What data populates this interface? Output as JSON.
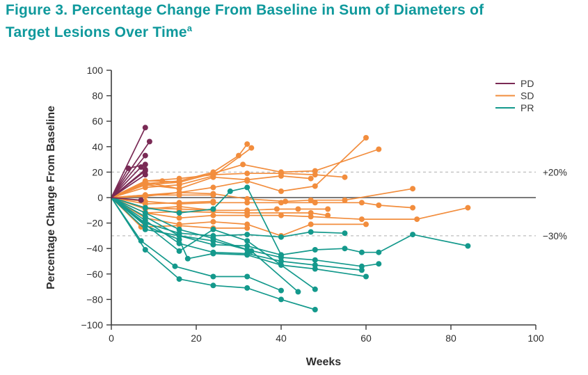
{
  "title": {
    "line1": "Figure 3. Percentage Change From Baseline in Sum of Diameters of",
    "line2": "Target Lesions Over Time",
    "footnote_marker": "a",
    "color": "#0f999c"
  },
  "chart_data": {
    "type": "line",
    "title": "Percentage Change From Baseline in Sum of Diameters of Target Lesions Over Time",
    "xlabel": "Weeks",
    "ylabel": "Percentage Change From Baseline",
    "xlim": [
      0,
      100
    ],
    "ylim": [
      -100,
      100
    ],
    "grid": false,
    "legend_position": "top-right",
    "x_ticks": [
      {
        "v": 0,
        "label": "0"
      },
      {
        "v": 20,
        "label": "20"
      },
      {
        "v": 40,
        "label": "40"
      },
      {
        "v": 60,
        "label": "60"
      },
      {
        "v": 80,
        "label": "80"
      },
      {
        "v": 100,
        "label": "100"
      }
    ],
    "y_ticks": [
      {
        "v": 100,
        "label": "100"
      },
      {
        "v": 80,
        "label": "80"
      },
      {
        "v": 60,
        "label": "60"
      },
      {
        "v": 40,
        "label": "40"
      },
      {
        "v": 20,
        "label": "20"
      },
      {
        "v": 0,
        "label": "0"
      },
      {
        "v": -20,
        "label": "−20"
      },
      {
        "v": -40,
        "label": "−40"
      },
      {
        "v": -60,
        "label": "−60"
      },
      {
        "v": -80,
        "label": "−80"
      },
      {
        "v": -100,
        "label": "−100"
      }
    ],
    "reference_lines": [
      {
        "y": 20,
        "label": "+20%",
        "style": "dashed",
        "color": "#bdbdbd"
      },
      {
        "y": -30,
        "label": "−30%",
        "style": "dashed",
        "color": "#bdbdbd"
      },
      {
        "y": 0,
        "label": "",
        "style": "solid",
        "color": "#7a7a7a"
      }
    ],
    "legend": [
      {
        "name": "PD",
        "color": "#7a2a55"
      },
      {
        "name": "SD",
        "color": "#f28d3d"
      },
      {
        "name": "PR",
        "color": "#14998c"
      }
    ],
    "axis_color": "#3a3a3a",
    "text_color": "#2e2e2e",
    "series": [
      {
        "group": "SD",
        "points": [
          [
            0,
            0
          ],
          [
            8,
            2
          ],
          [
            16,
            4
          ],
          [
            24,
            8
          ],
          [
            32,
            13
          ],
          [
            40,
            5
          ],
          [
            48,
            9
          ],
          [
            60,
            47
          ]
        ]
      },
      {
        "group": "SD",
        "points": [
          [
            0,
            0
          ],
          [
            8,
            10
          ],
          [
            16,
            12
          ],
          [
            24,
            19
          ],
          [
            31,
            26
          ],
          [
            40,
            20
          ],
          [
            48,
            21
          ],
          [
            63,
            38
          ]
        ]
      },
      {
        "group": "SD",
        "points": [
          [
            0,
            0
          ],
          [
            8,
            11
          ],
          [
            16,
            13
          ],
          [
            24,
            20
          ],
          [
            30,
            33
          ],
          [
            32,
            42
          ]
        ]
      },
      {
        "group": "SD",
        "points": [
          [
            0,
            0
          ],
          [
            8,
            8
          ],
          [
            16,
            10
          ],
          [
            24,
            17
          ],
          [
            33,
            39
          ]
        ]
      },
      {
        "group": "SD",
        "points": [
          [
            0,
            0
          ],
          [
            8,
            13
          ],
          [
            16,
            15
          ],
          [
            24,
            18
          ],
          [
            32,
            19
          ],
          [
            40,
            19
          ],
          [
            48,
            18
          ],
          [
            55,
            16
          ]
        ]
      },
      {
        "group": "SD",
        "points": [
          [
            0,
            0
          ],
          [
            8,
            12
          ],
          [
            16,
            7
          ],
          [
            24,
            16
          ],
          [
            32,
            14
          ],
          [
            40,
            17
          ],
          [
            47,
            15
          ]
        ]
      },
      {
        "group": "SD",
        "points": [
          [
            0,
            0
          ],
          [
            8,
            1
          ],
          [
            16,
            4
          ],
          [
            24,
            3
          ],
          [
            32,
            -1
          ],
          [
            41,
            -3
          ],
          [
            47,
            -2
          ],
          [
            55,
            -2
          ],
          [
            71,
            7
          ]
        ]
      },
      {
        "group": "SD",
        "points": [
          [
            0,
            0
          ],
          [
            8,
            -3
          ],
          [
            16,
            -5
          ],
          [
            24,
            -4
          ],
          [
            32,
            -4
          ],
          [
            40,
            -4
          ],
          [
            48,
            -4
          ],
          [
            59,
            -4
          ],
          [
            63,
            -6
          ],
          [
            71,
            -8
          ]
        ]
      },
      {
        "group": "SD",
        "points": [
          [
            0,
            0
          ],
          [
            8,
            -8
          ],
          [
            16,
            -9
          ],
          [
            24,
            -10
          ],
          [
            32,
            -10
          ],
          [
            39,
            -9
          ],
          [
            44,
            -9
          ],
          [
            51,
            -9
          ]
        ]
      },
      {
        "group": "SD",
        "points": [
          [
            0,
            0
          ],
          [
            8,
            -12
          ],
          [
            16,
            -16
          ],
          [
            24,
            -14
          ],
          [
            32,
            -14
          ],
          [
            40,
            -14
          ],
          [
            47,
            -15
          ],
          [
            59,
            -17
          ],
          [
            72,
            -17
          ],
          [
            84,
            -8
          ]
        ]
      },
      {
        "group": "SD",
        "points": [
          [
            0,
            0
          ],
          [
            8,
            -16
          ],
          [
            16,
            -21
          ],
          [
            24,
            -19
          ],
          [
            32,
            -21
          ],
          [
            40,
            -30
          ],
          [
            47,
            -21
          ],
          [
            60,
            -21
          ]
        ]
      },
      {
        "group": "SD",
        "points": [
          [
            0,
            0
          ],
          [
            7,
            -23
          ],
          [
            16,
            -22
          ],
          [
            24,
            -24
          ],
          [
            32,
            -24
          ]
        ]
      },
      {
        "group": "SD",
        "points": [
          [
            0,
            0
          ],
          [
            8,
            13
          ],
          [
            12,
            13
          ],
          [
            16,
            12
          ]
        ]
      },
      {
        "group": "SD",
        "points": [
          [
            0,
            0
          ],
          [
            8,
            2
          ],
          [
            16,
            2
          ],
          [
            24,
            2
          ]
        ]
      },
      {
        "group": "SD",
        "points": [
          [
            0,
            0
          ],
          [
            8,
            -5
          ],
          [
            16,
            -4
          ],
          [
            24,
            -3
          ]
        ]
      },
      {
        "group": "SD",
        "points": [
          [
            0,
            0
          ],
          [
            8,
            -9
          ],
          [
            16,
            -7
          ],
          [
            24,
            -10
          ]
        ]
      },
      {
        "group": "SD",
        "points": [
          [
            0,
            0
          ],
          [
            8,
            -12
          ],
          [
            16,
            -11
          ],
          [
            32,
            -12
          ],
          [
            47,
            -12
          ],
          [
            51,
            -14
          ]
        ]
      },
      {
        "group": "SD",
        "points": [
          [
            0,
            0
          ],
          [
            8,
            10
          ],
          [
            16,
            7
          ]
        ]
      },
      {
        "group": "PR",
        "points": [
          [
            0,
            0
          ],
          [
            8,
            -41
          ],
          [
            16,
            -64
          ],
          [
            24,
            -69
          ],
          [
            32,
            -71
          ],
          [
            40,
            -80
          ],
          [
            48,
            -88
          ]
        ]
      },
      {
        "group": "PR",
        "points": [
          [
            0,
            0
          ],
          [
            7,
            -34
          ],
          [
            15,
            -54
          ],
          [
            24,
            -62
          ],
          [
            32,
            -62
          ],
          [
            40,
            -73
          ]
        ]
      },
      {
        "group": "PR",
        "points": [
          [
            0,
            0
          ],
          [
            8,
            -22
          ],
          [
            16,
            -33
          ],
          [
            18,
            -48
          ],
          [
            24,
            -44
          ],
          [
            32,
            -45
          ],
          [
            40,
            -53
          ],
          [
            48,
            -56
          ],
          [
            60,
            -62
          ]
        ]
      },
      {
        "group": "PR",
        "points": [
          [
            0,
            0
          ],
          [
            8,
            -15
          ],
          [
            16,
            -30
          ],
          [
            24,
            -34
          ],
          [
            32,
            -41
          ],
          [
            40,
            -47
          ],
          [
            48,
            -49
          ],
          [
            59,
            -54
          ],
          [
            63,
            -52
          ]
        ]
      },
      {
        "group": "PR",
        "points": [
          [
            0,
            0
          ],
          [
            8,
            -18
          ],
          [
            16,
            -36
          ],
          [
            24,
            -43
          ],
          [
            32,
            -44
          ],
          [
            40,
            -50
          ],
          [
            48,
            -53
          ],
          [
            59,
            -57
          ]
        ]
      },
      {
        "group": "PR",
        "points": [
          [
            0,
            0
          ],
          [
            8,
            -25
          ],
          [
            16,
            -30
          ],
          [
            24,
            -37
          ],
          [
            32,
            -38
          ],
          [
            40,
            -45
          ],
          [
            48,
            -41
          ],
          [
            55,
            -40
          ],
          [
            59,
            -43
          ],
          [
            63,
            -43
          ],
          [
            71,
            -29
          ],
          [
            84,
            -38
          ]
        ]
      },
      {
        "group": "PR",
        "points": [
          [
            0,
            0
          ],
          [
            8,
            -12
          ],
          [
            16,
            -25
          ],
          [
            24,
            -32
          ],
          [
            33,
            -42
          ],
          [
            44,
            -74
          ]
        ]
      },
      {
        "group": "PR",
        "points": [
          [
            0,
            0
          ],
          [
            16,
            -42
          ],
          [
            24,
            -25
          ],
          [
            32,
            -34
          ],
          [
            48,
            -72
          ]
        ]
      },
      {
        "group": "PR",
        "points": [
          [
            0,
            0
          ],
          [
            8,
            -8
          ],
          [
            16,
            -12
          ],
          [
            24,
            -9
          ],
          [
            28,
            5
          ],
          [
            32,
            8
          ],
          [
            40,
            -45
          ]
        ]
      },
      {
        "group": "PR",
        "points": [
          [
            0,
            0
          ],
          [
            8,
            -20
          ],
          [
            16,
            -28
          ],
          [
            24,
            -30
          ],
          [
            32,
            -29
          ],
          [
            40,
            -31
          ],
          [
            47,
            -27
          ],
          [
            55,
            -28
          ]
        ]
      },
      {
        "group": "PD",
        "points": [
          [
            0,
            0
          ],
          [
            8,
            55
          ]
        ]
      },
      {
        "group": "PD",
        "points": [
          [
            0,
            0
          ],
          [
            9,
            44
          ]
        ]
      },
      {
        "group": "PD",
        "points": [
          [
            0,
            0
          ],
          [
            8,
            33
          ]
        ]
      },
      {
        "group": "PD",
        "points": [
          [
            0,
            0
          ],
          [
            4,
            23
          ],
          [
            8,
            26
          ]
        ]
      },
      {
        "group": "PD",
        "points": [
          [
            0,
            0
          ],
          [
            7,
            24
          ]
        ]
      },
      {
        "group": "PD",
        "points": [
          [
            0,
            0
          ],
          [
            8,
            22
          ]
        ]
      },
      {
        "group": "PD",
        "points": [
          [
            0,
            0
          ],
          [
            8,
            21
          ]
        ]
      },
      {
        "group": "PD",
        "points": [
          [
            0,
            0
          ],
          [
            8,
            18
          ]
        ]
      },
      {
        "group": "PD",
        "points": [
          [
            0,
            0
          ],
          [
            7,
            -2
          ]
        ]
      }
    ]
  }
}
